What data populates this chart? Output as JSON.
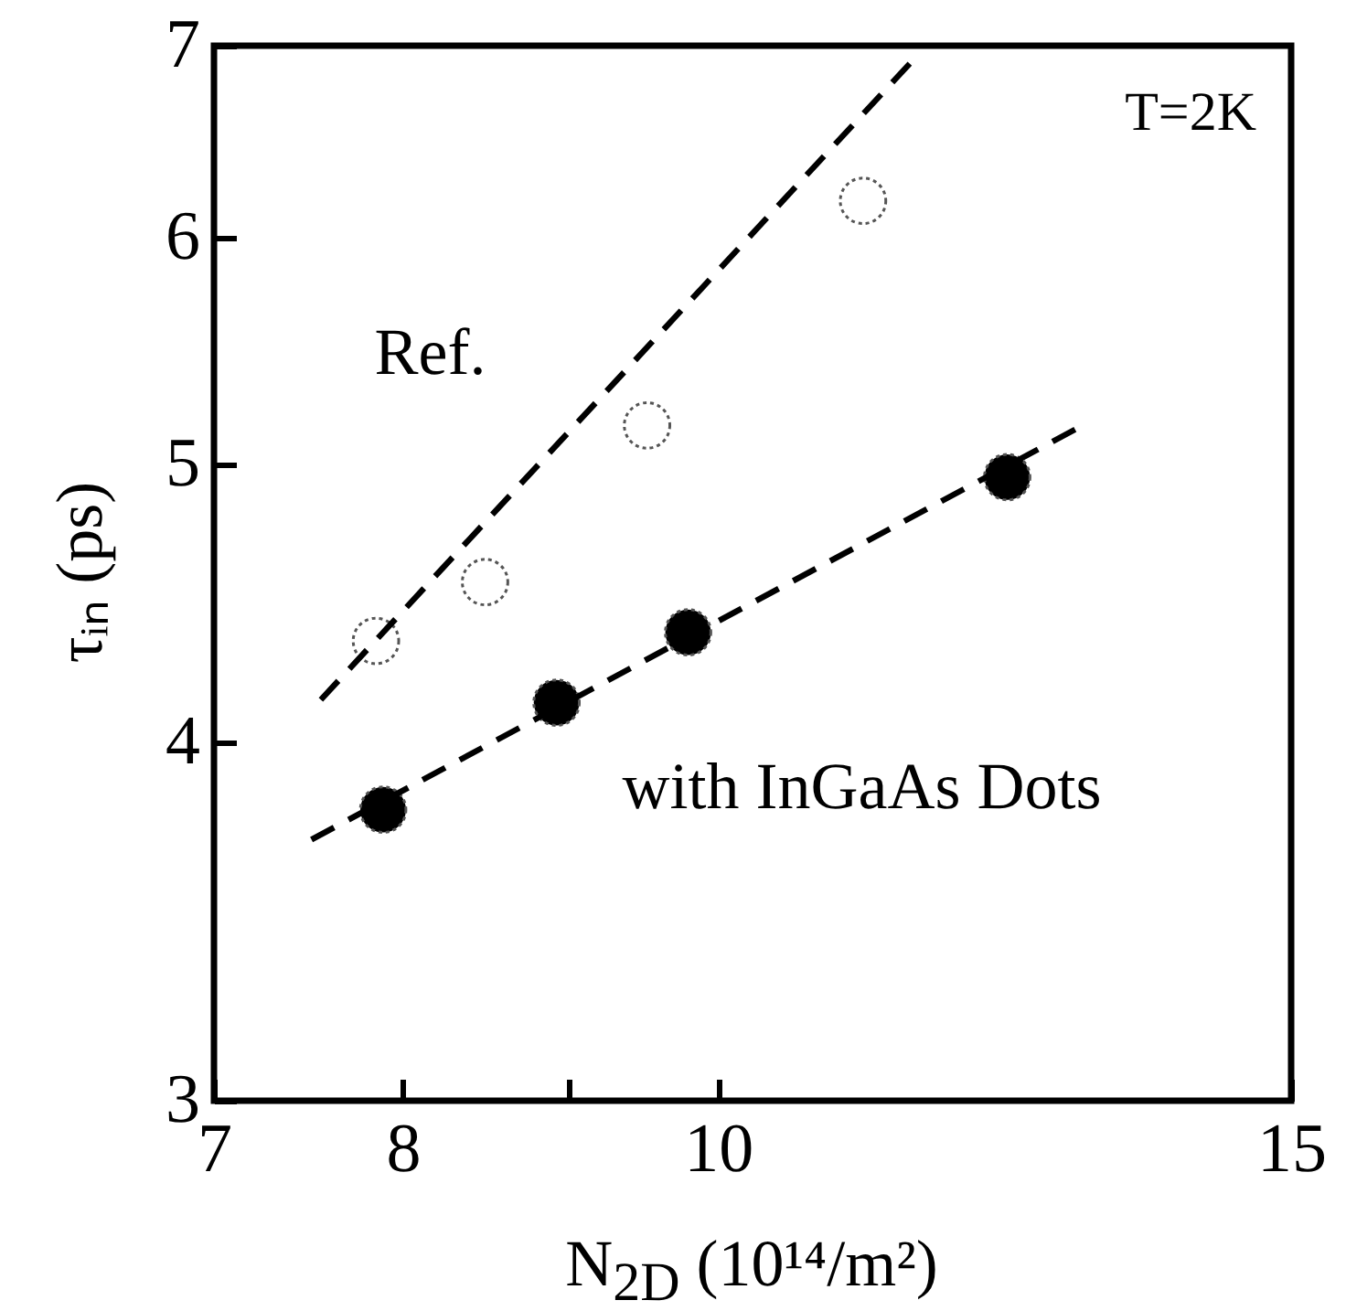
{
  "chart_data": {
    "type": "scatter",
    "xlabel": "N$_{2D}$ (10¹⁴/m²)",
    "ylabel": "τᵢₙ (ps)",
    "log": "xy",
    "xlim": [
      7,
      15
    ],
    "ylim": [
      3,
      7
    ],
    "xticks": [
      7,
      8,
      {
        "value": 9,
        "label": null
      },
      10,
      15
    ],
    "yticks": [
      3,
      4,
      5,
      6,
      7
    ],
    "grid": false,
    "marker": "circle",
    "annotations": [
      "T=2K"
    ],
    "series": [
      {
        "name": "Ref.",
        "color": "#ffffff",
        "x": [
          7.85,
          8.48,
          9.51,
          11.08
        ],
        "values": [
          4.34,
          4.55,
          5.16,
          6.18
        ]
      },
      {
        "name": "with InGaAs Dots",
        "color": "#000000",
        "x": [
          7.89,
          8.92,
          9.79,
          12.27
        ],
        "values": [
          3.79,
          4.13,
          4.37,
          4.95
        ]
      },
      {
        "type": "line",
        "color": "#000000",
        "line_style": "dashed",
        "marker": "none",
        "x": [
          7.55,
          11.52
        ],
        "values": [
          4.14,
          6.95
        ]
      },
      {
        "type": "line",
        "color": "#000000",
        "line_style": "dashed",
        "marker": "none",
        "x": [
          7.5,
          12.9
        ],
        "values": [
          3.7,
          5.15
        ]
      }
    ]
  }
}
